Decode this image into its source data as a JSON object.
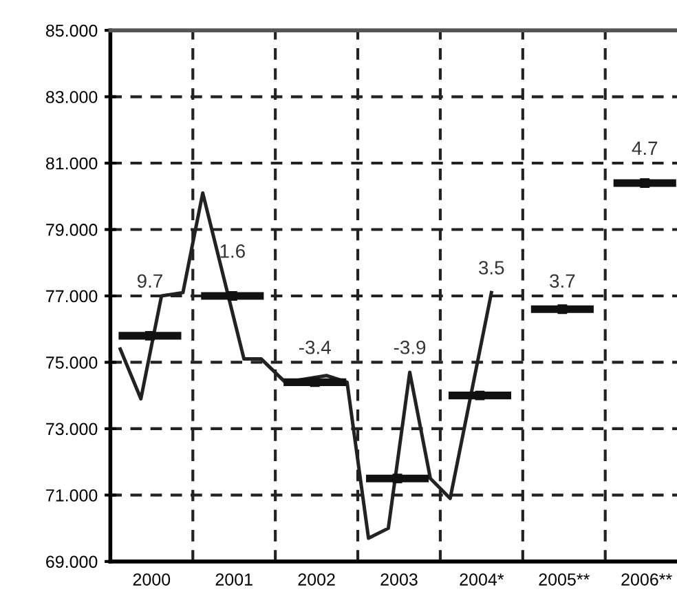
{
  "chart_data": {
    "type": "line",
    "x": [
      2000.12,
      2000.37,
      2000.62,
      2000.88,
      2001.12,
      2001.37,
      2001.62,
      2001.83,
      2002.12,
      2002.62,
      2002.87,
      2003.13,
      2003.37,
      2003.63,
      2003.88,
      2004.12,
      2004.62
    ],
    "series": [
      {
        "color": "#222222",
        "values": [
          75.4,
          73.9,
          77.0,
          77.1,
          80.1,
          77.6,
          75.1,
          75.1,
          74.4,
          74.6,
          74.4,
          69.7,
          70.0,
          74.7,
          71.5,
          70.9,
          77.1
        ]
      },
      {
        "type": "scatter",
        "marker": "square",
        "color": "#111111",
        "x": [
          2000.48,
          2001.48,
          2002.48,
          2003.48,
          2004.48,
          2005.48,
          2006.48
        ],
        "values": [
          75.8,
          77.0,
          74.4,
          71.5,
          74.0,
          76.6,
          80.4
        ],
        "xerrors": [
          0.38,
          0.38,
          0.38,
          0.38,
          0.38,
          0.38,
          0.38
        ]
      }
    ],
    "xlim": [
      2000,
      2006.87
    ],
    "xticks": [
      {
        "value": 2000.5,
        "label": "2000"
      },
      {
        "value": 2001.5,
        "label": "2001"
      },
      {
        "value": 2002.5,
        "label": "2002"
      },
      {
        "value": 2003.5,
        "label": "2003"
      },
      {
        "value": 2004.5,
        "label": "2004*"
      },
      {
        "value": 2005.5,
        "label": "2005**"
      },
      {
        "value": 2006.5,
        "label": "2006**"
      }
    ],
    "ylim": [
      69,
      85
    ],
    "yticks": [
      {
        "value": 69,
        "label": "69.000"
      },
      {
        "value": 71,
        "label": "71.000"
      },
      {
        "value": 73,
        "label": "73.000"
      },
      {
        "value": 75,
        "label": "75.000"
      },
      {
        "value": 77,
        "label": "77.000"
      },
      {
        "value": 79,
        "label": "79.000"
      },
      {
        "value": 81,
        "label": "81.000"
      },
      {
        "value": 83,
        "label": "83.000"
      },
      {
        "value": 85,
        "label": "85.000"
      }
    ],
    "grid": "y",
    "line_style": "solid",
    "ref_lines": [
      {
        "axis": "x",
        "value": 2001,
        "line_style": "dashed"
      },
      {
        "axis": "x",
        "value": 2002,
        "line_style": "dashed"
      },
      {
        "axis": "x",
        "value": 2003,
        "line_style": "dashed"
      },
      {
        "axis": "x",
        "value": 2004,
        "line_style": "dashed"
      },
      {
        "axis": "x",
        "value": 2005,
        "line_style": "dashed"
      },
      {
        "axis": "x",
        "value": 2006,
        "line_style": "dashed"
      }
    ],
    "annotations": [
      {
        "text": "9.7",
        "x": 2000.48,
        "y": 75.8
      },
      {
        "text": "1.6",
        "x": 2001.48,
        "y": 77.0
      },
      {
        "text": "-3.4",
        "x": 2002.48,
        "y": 74.4
      },
      {
        "text": "-3.9",
        "x": 2003.63,
        "y": 74.7
      },
      {
        "text": "3.5",
        "x": 2004.62,
        "y": 77.1
      },
      {
        "text": "3.7",
        "x": 2005.48,
        "y": 76.6
      },
      {
        "text": "4.7",
        "x": 2006.48,
        "y": 80.4
      }
    ]
  }
}
